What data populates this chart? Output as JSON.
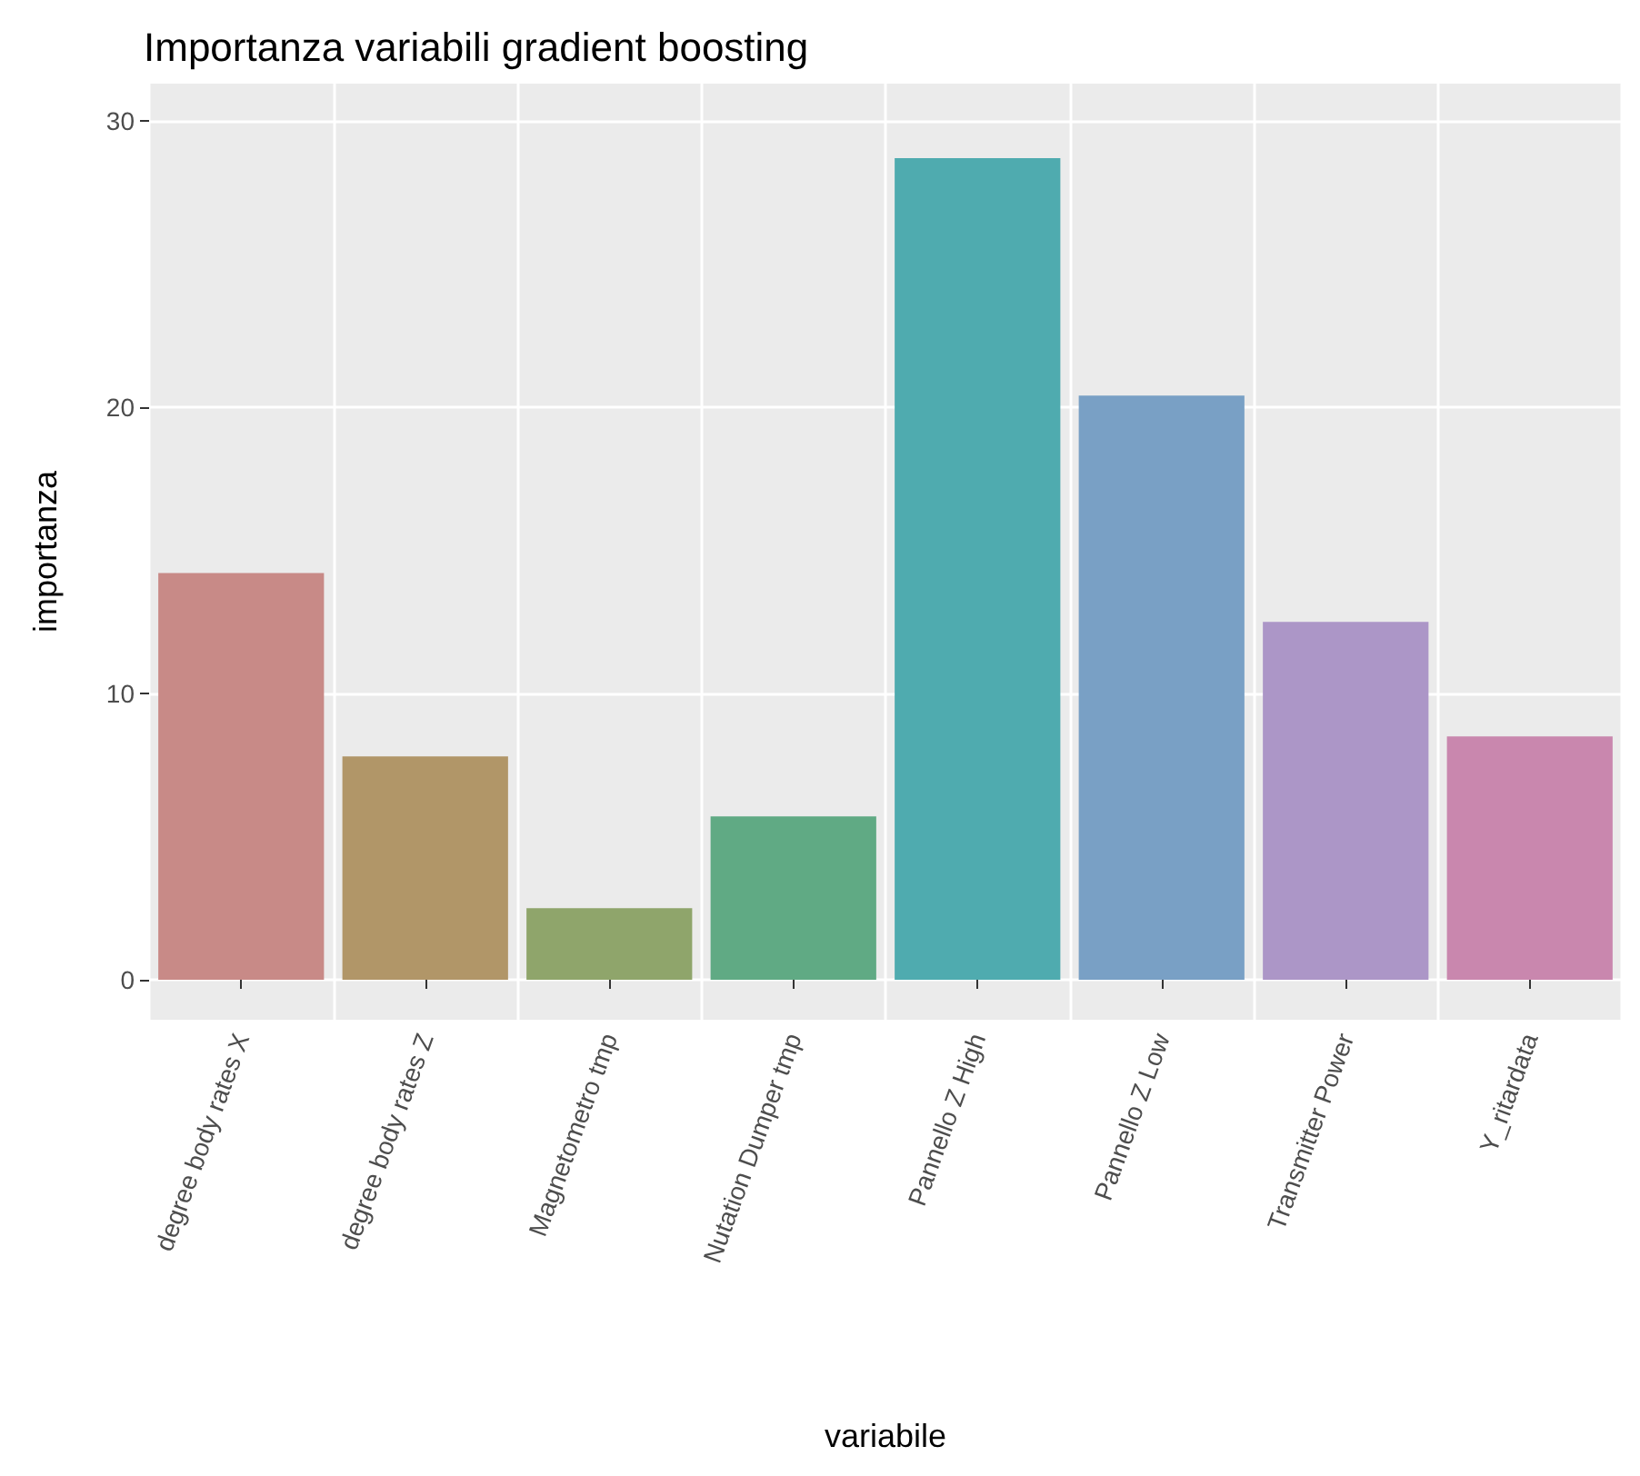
{
  "chart_data": {
    "type": "bar",
    "title": "Importanza variabili gradient boosting",
    "xlabel": "variabile",
    "ylabel": "importanza",
    "categories": [
      "degree body rates X",
      "degree body rates Z",
      "Magnetometro tmp",
      "Nutation Dumper tmp",
      "Pannello Z High",
      "Pannello Z Low",
      "Transmitter Power",
      "Y_ritardata"
    ],
    "values": [
      14.2,
      7.8,
      2.5,
      5.7,
      28.7,
      20.4,
      12.5,
      8.5
    ],
    "colors": [
      "#c88a87",
      "#b19668",
      "#8fa56b",
      "#60aa84",
      "#4fabaf",
      "#79a0c5",
      "#ac96c7",
      "#c987ae"
    ],
    "ylim": [
      -1.4,
      31.3
    ],
    "yticks": [
      0,
      10,
      20,
      30
    ],
    "grid": true
  }
}
